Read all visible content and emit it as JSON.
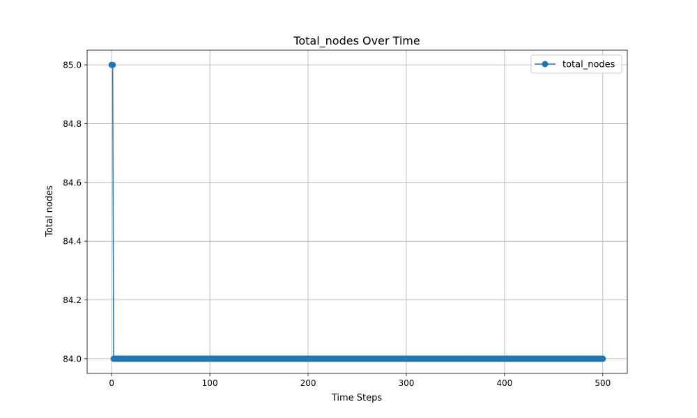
{
  "chart_data": {
    "type": "line",
    "title": "Total_nodes Over Time",
    "xlabel": "Time Steps",
    "ylabel": "Total nodes",
    "xlim": [
      -25,
      525
    ],
    "ylim": [
      83.95,
      85.05
    ],
    "x_ticks": [
      0,
      100,
      200,
      300,
      400,
      500
    ],
    "x_tick_labels": [
      "0",
      "100",
      "200",
      "300",
      "400",
      "500"
    ],
    "y_ticks": [
      84.0,
      84.2,
      84.4,
      84.6,
      84.8,
      85.0
    ],
    "y_tick_labels": [
      "84.0",
      "84.2",
      "84.4",
      "84.6",
      "84.8",
      "85.0"
    ],
    "grid": true,
    "legend_position": "top-right",
    "series": [
      {
        "name": "total_nodes",
        "color": "#1f77b4",
        "marker": "circle",
        "x_start": 0,
        "x_end": 500,
        "x_step": 1,
        "values_description_free": true,
        "initial_values": [
          85,
          85
        ],
        "steady_value": 84
      }
    ]
  }
}
